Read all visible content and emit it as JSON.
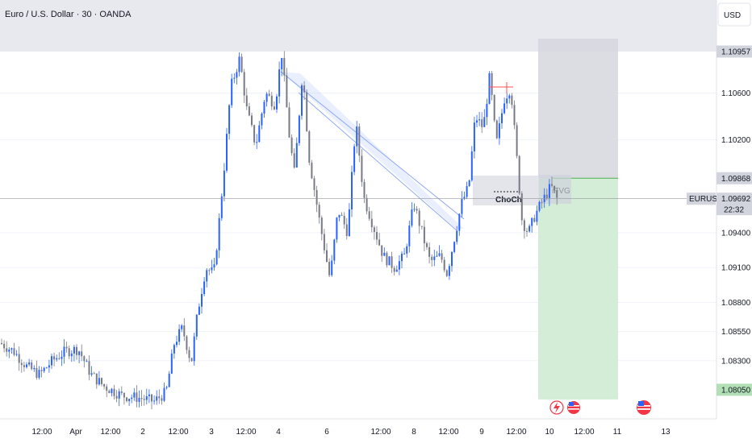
{
  "header": {
    "title": "Euro / U.S. Dollar · 30 · OANDA",
    "currency": "USD"
  },
  "price_axis": {
    "ticks": [
      "1.10600",
      "1.10200",
      "1.09400",
      "1.09100",
      "1.08800",
      "1.08550",
      "1.08300"
    ],
    "tag_top": {
      "value": "1.10957",
      "color": "#d1d4dc"
    },
    "tag_entry": {
      "value": "1.09868",
      "color": "#d1d4dc"
    },
    "tag_current": {
      "symbol": "EURUSD",
      "value": "1.09692",
      "countdown": "22:32",
      "color": "#d1d4dc"
    },
    "tag_target": {
      "value": "1.08050",
      "color": "#b2dfb6"
    }
  },
  "time_axis": {
    "labels": [
      "12:00",
      "Apr",
      "12:00",
      "2",
      "12:00",
      "3",
      "12:00",
      "4",
      "6",
      "12:00",
      "8",
      "12:00",
      "9",
      "12:00",
      "10",
      "12:00",
      "11",
      "13"
    ]
  },
  "annotations": {
    "choch": "ChoCh",
    "ifvg": "iFVG"
  },
  "colors": {
    "up": "#2962ff",
    "down": "#787b86",
    "supply_zone": "#e8e9ef",
    "risk": "#d6d7de",
    "reward": "#d4edd6",
    "channel": "#2962ff",
    "line": "#ff5252"
  },
  "chart_data": {
    "type": "candlestick",
    "symbol": "EURUSD",
    "interval": "30",
    "y_range": [
      1.078,
      1.114
    ],
    "current_price": 1.09692,
    "supply_zone": [
      1.10957,
      1.114
    ],
    "position": {
      "stop": 1.10957,
      "entry": 1.09868,
      "target": 1.0805
    },
    "path": [
      [
        0,
        1.0845
      ],
      [
        16,
        1.0838
      ],
      [
        32,
        1.0825
      ],
      [
        48,
        1.0818
      ],
      [
        64,
        1.083
      ],
      [
        80,
        1.0838
      ],
      [
        96,
        1.084
      ],
      [
        112,
        1.0818
      ],
      [
        128,
        1.0808
      ],
      [
        150,
        1.08
      ],
      [
        172,
        1.0798
      ],
      [
        190,
        1.0795
      ],
      [
        205,
        1.0803
      ],
      [
        215,
        1.0845
      ],
      [
        225,
        1.0858
      ],
      [
        236,
        1.0828
      ],
      [
        244,
        1.0872
      ],
      [
        254,
        1.091
      ],
      [
        264,
        1.0905
      ],
      [
        270,
        1.0945
      ],
      [
        278,
        1.1005
      ],
      [
        285,
        1.1065
      ],
      [
        296,
        1.109
      ],
      [
        305,
        1.1045
      ],
      [
        316,
        1.1015
      ],
      [
        328,
        1.106
      ],
      [
        340,
        1.105
      ],
      [
        348,
        1.1095
      ],
      [
        358,
        1.102
      ],
      [
        364,
        1.099
      ],
      [
        374,
        1.108
      ],
      [
        382,
        1.1005
      ],
      [
        395,
        1.095
      ],
      [
        408,
        1.09
      ],
      [
        418,
        1.096
      ],
      [
        430,
        1.094
      ],
      [
        440,
        1.1035
      ],
      [
        450,
        1.097
      ],
      [
        462,
        1.0945
      ],
      [
        474,
        1.092
      ],
      [
        488,
        1.091
      ],
      [
        500,
        1.092
      ],
      [
        512,
        1.0965
      ],
      [
        522,
        1.094
      ],
      [
        532,
        1.0915
      ],
      [
        545,
        1.092
      ],
      [
        553,
        1.0905
      ],
      [
        562,
        1.0935
      ],
      [
        571,
        1.0965
      ],
      [
        580,
        1.098
      ],
      [
        588,
        1.104
      ],
      [
        598,
        1.103
      ],
      [
        606,
        1.1075
      ],
      [
        614,
        1.1015
      ],
      [
        624,
        1.1055
      ],
      [
        632,
        1.1065
      ],
      [
        640,
        1.1
      ],
      [
        646,
        1.095
      ],
      [
        654,
        1.094
      ],
      [
        662,
        1.0955
      ],
      [
        672,
        1.0968
      ],
      [
        682,
        1.098
      ],
      [
        690,
        1.0968
      ]
    ]
  }
}
